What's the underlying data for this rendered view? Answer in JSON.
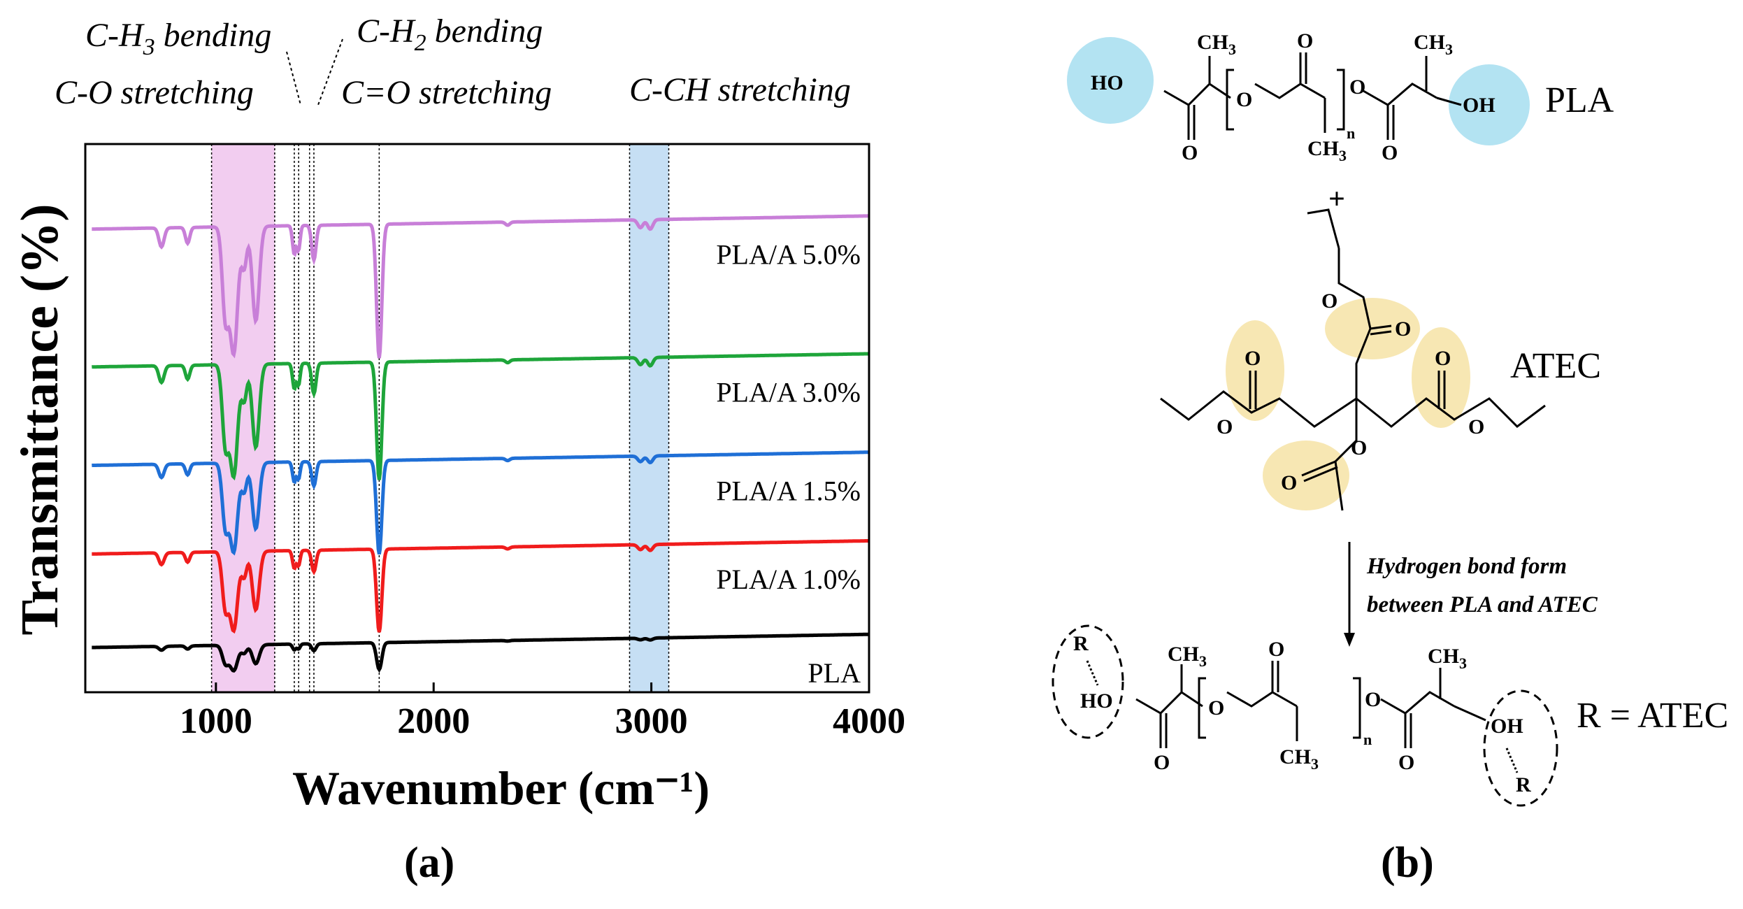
{
  "figure": {
    "panel_a_label": "(a)",
    "panel_b_label": "(b)"
  },
  "chart_data": {
    "type": "line",
    "xlabel": "Wavenumber (cm⁻¹)",
    "ylabel": "Transmittance (%)",
    "xlim": [
      400,
      4000
    ],
    "x_ticks": [
      "1000",
      "2000",
      "3000",
      "4000"
    ],
    "grid": false,
    "legend": "none (series labelled at right end of each trace)",
    "bands": [
      {
        "label": "C-O stretching",
        "x_range": [
          980,
          1270
        ],
        "color": "#f2cdf0"
      },
      {
        "label": "C-CH stretching",
        "x_range": [
          2900,
          3080
        ],
        "color": "#c6dff4"
      }
    ],
    "reference_lines": [
      {
        "label": "C-H3 bending",
        "x": [
          1360,
          1380
        ]
      },
      {
        "label": "C-H2 bending",
        "x": [
          1430,
          1450
        ]
      },
      {
        "label": "C=O stretching",
        "x": [
          1750
        ]
      }
    ],
    "annotations": {
      "co_stretch": "C-O stretching",
      "ch3_main": "C-H",
      "ch3_sub": "3",
      "ch3_rest": " bending",
      "ch2_main": "C-H",
      "ch2_sub": "2",
      "ch2_rest": " bending",
      "c_o_double": "C=O stretching",
      "cch_stretch": "C-CH stretching"
    },
    "peaks_cm1": [
      750,
      870,
      1043,
      1082,
      1130,
      1183,
      1360,
      1380,
      1450,
      1750,
      2950,
      2995
    ],
    "series": [
      {
        "name": "PLA/A 5.0%",
        "color": "#c87fd8",
        "baseline": 0.91,
        "depth": 1.0
      },
      {
        "name": "PLA/A 3.0%",
        "color": "#1ea53a",
        "baseline": 0.63,
        "depth": 0.88
      },
      {
        "name": "PLA/A 1.5%",
        "color": "#1f6fd6",
        "baseline": 0.43,
        "depth": 0.7
      },
      {
        "name": "PLA/A 1.0%",
        "color": "#f01c1c",
        "baseline": 0.25,
        "depth": 0.62
      },
      {
        "name": "PLA",
        "color": "#000000",
        "baseline": 0.06,
        "depth": 0.2
      }
    ]
  },
  "scheme": {
    "pla_name": "PLA",
    "atec_name": "ATEC",
    "plus": "+",
    "arrow_text_line1": "Hydrogen bond form",
    "arrow_text_line2": "between PLA and ATEC",
    "r_equals": "R = ATEC",
    "labels": {
      "ho": "HO",
      "oh": "OH",
      "o": "O",
      "ch3": "CH",
      "sub3": "3",
      "n": "n",
      "r": "R"
    },
    "colors": {
      "pla_highlight": "#b3e3f2",
      "atec_highlight": "#f7e7b3"
    }
  }
}
